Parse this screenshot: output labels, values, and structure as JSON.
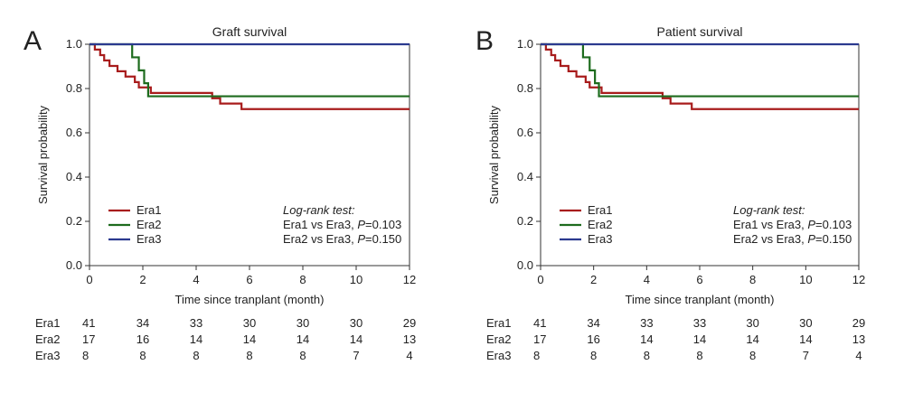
{
  "colors": {
    "Era1": "#a81c1c",
    "Era2": "#1d6b1d",
    "Era3": "#2b3a8f"
  },
  "chart_data": [
    {
      "type": "line",
      "panel": "A",
      "title": "Graft survival",
      "xlabel": "Time since tranplant (month)",
      "ylabel": "Survival probability",
      "xlim": [
        0,
        12
      ],
      "ylim": [
        0,
        1.0
      ],
      "xticks": [
        "0",
        "2",
        "4",
        "6",
        "8",
        "10",
        "12"
      ],
      "yticks": [
        "0.0",
        "0.2",
        "0.4",
        "0.6",
        "0.8",
        "1.0"
      ],
      "grid": false,
      "legend_position": "bottom-left",
      "series": [
        {
          "name": "Era1",
          "step": [
            [
              0,
              1.0
            ],
            [
              0.2,
              0.976
            ],
            [
              0.4,
              0.951
            ],
            [
              0.55,
              0.927
            ],
            [
              0.75,
              0.902
            ],
            [
              1.05,
              0.878
            ],
            [
              1.35,
              0.854
            ],
            [
              1.7,
              0.829
            ],
            [
              1.85,
              0.805
            ],
            [
              2.3,
              0.78
            ],
            [
              4.6,
              0.756
            ],
            [
              4.9,
              0.732
            ],
            [
              5.7,
              0.707
            ],
            [
              12,
              0.707
            ]
          ]
        },
        {
          "name": "Era2",
          "step": [
            [
              0,
              1.0
            ],
            [
              1.6,
              0.941
            ],
            [
              1.85,
              0.882
            ],
            [
              2.05,
              0.824
            ],
            [
              2.2,
              0.765
            ],
            [
              12,
              0.765
            ]
          ]
        },
        {
          "name": "Era3",
          "step": [
            [
              0,
              1.0
            ],
            [
              12,
              1.0
            ]
          ]
        }
      ],
      "test": {
        "heading": "Log-rank test:",
        "lines": [
          {
            "pre": "Era1 vs Era3, ",
            "p": "P",
            "post": "=0.103"
          },
          {
            "pre": "Era2 vs Era3, ",
            "p": "P",
            "post": "=0.150"
          }
        ]
      },
      "risk_table": [
        {
          "label": "Era1",
          "values": [
            "41",
            "34",
            "33",
            "30",
            "30",
            "30",
            "29"
          ]
        },
        {
          "label": "Era2",
          "values": [
            "17",
            "16",
            "14",
            "14",
            "14",
            "14",
            "13"
          ]
        },
        {
          "label": "Era3",
          "values": [
            "8",
            "8",
            "8",
            "8",
            "8",
            "7",
            "4"
          ]
        }
      ]
    },
    {
      "type": "line",
      "panel": "B",
      "title": "Patient survival",
      "xlabel": "Time since tranplant (month)",
      "ylabel": "Survival probability",
      "xlim": [
        0,
        12
      ],
      "ylim": [
        0,
        1.0
      ],
      "xticks": [
        "0",
        "2",
        "4",
        "6",
        "8",
        "10",
        "12"
      ],
      "yticks": [
        "0.0",
        "0.2",
        "0.4",
        "0.6",
        "0.8",
        "1.0"
      ],
      "grid": false,
      "legend_position": "bottom-left",
      "series": [
        {
          "name": "Era1",
          "step": [
            [
              0,
              1.0
            ],
            [
              0.2,
              0.976
            ],
            [
              0.4,
              0.951
            ],
            [
              0.55,
              0.927
            ],
            [
              0.75,
              0.902
            ],
            [
              1.05,
              0.878
            ],
            [
              1.35,
              0.854
            ],
            [
              1.7,
              0.829
            ],
            [
              1.85,
              0.805
            ],
            [
              2.3,
              0.78
            ],
            [
              4.6,
              0.756
            ],
            [
              4.9,
              0.732
            ],
            [
              5.7,
              0.707
            ],
            [
              12,
              0.707
            ]
          ]
        },
        {
          "name": "Era2",
          "step": [
            [
              0,
              1.0
            ],
            [
              1.6,
              0.941
            ],
            [
              1.85,
              0.882
            ],
            [
              2.05,
              0.824
            ],
            [
              2.2,
              0.765
            ],
            [
              12,
              0.765
            ]
          ]
        },
        {
          "name": "Era3",
          "step": [
            [
              0,
              1.0
            ],
            [
              12,
              1.0
            ]
          ]
        }
      ],
      "test": {
        "heading": "Log-rank test:",
        "lines": [
          {
            "pre": "Era1 vs Era3, ",
            "p": "P",
            "post": "=0.103"
          },
          {
            "pre": "Era2 vs Era3, ",
            "p": "P",
            "post": "=0.150"
          }
        ]
      },
      "risk_table": [
        {
          "label": "Era1",
          "values": [
            "41",
            "34",
            "33",
            "33",
            "30",
            "30",
            "29"
          ]
        },
        {
          "label": "Era2",
          "values": [
            "17",
            "16",
            "14",
            "14",
            "14",
            "14",
            "13"
          ]
        },
        {
          "label": "Era3",
          "values": [
            "8",
            "8",
            "8",
            "8",
            "8",
            "7",
            "4"
          ]
        }
      ]
    }
  ]
}
